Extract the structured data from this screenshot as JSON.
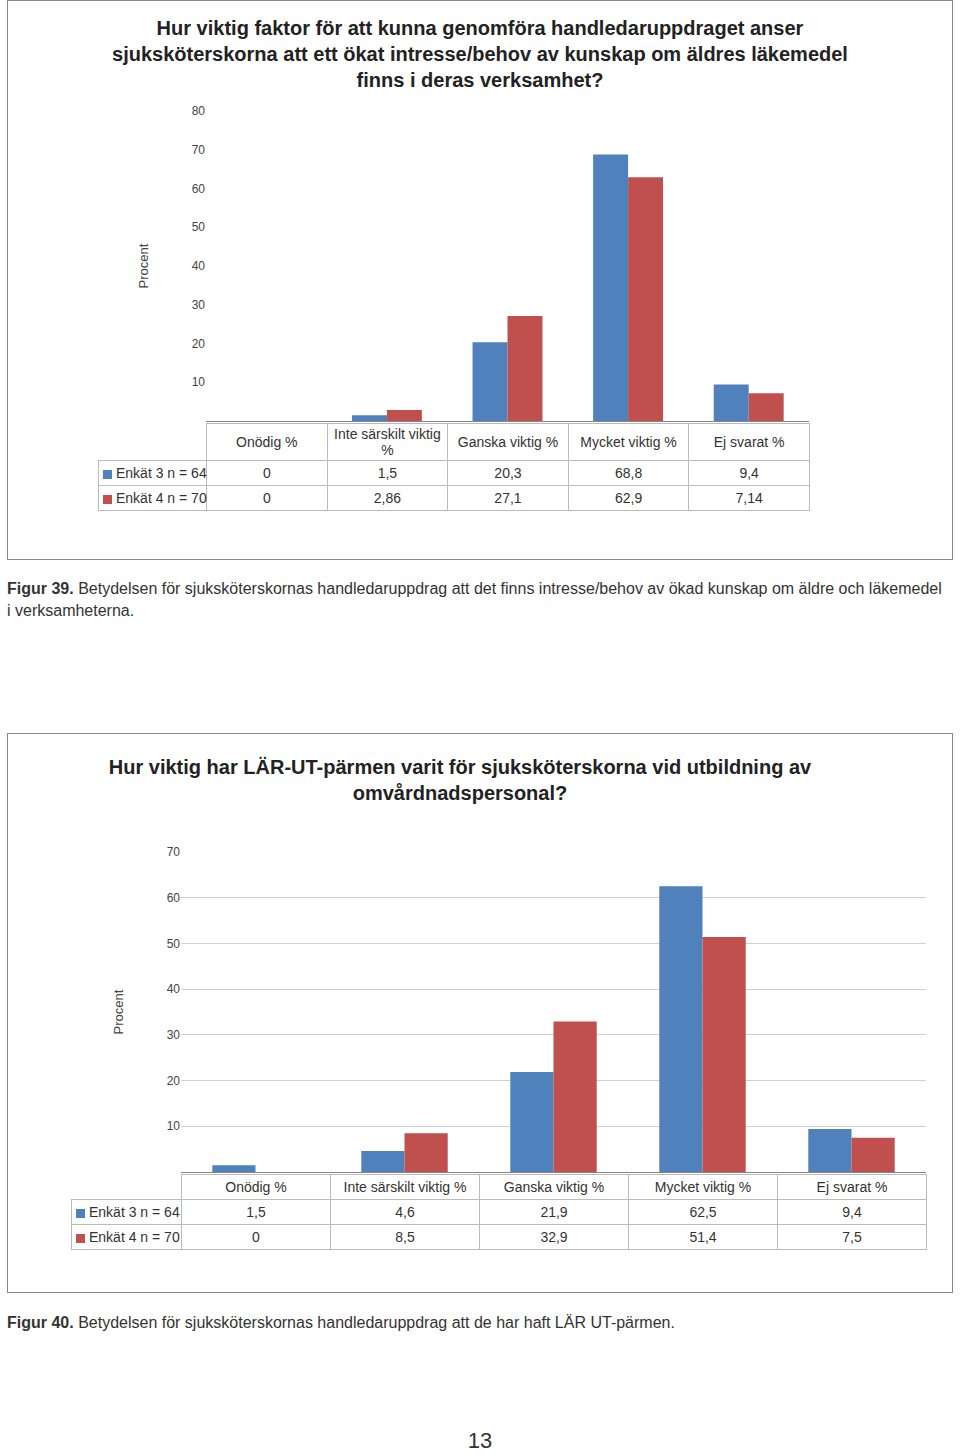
{
  "chart_data": [
    {
      "type": "bar",
      "title": "Hur viktig faktor för att kunna genomföra handledaruppdraget anser sjuksköterskorna att ett ökat intresse/behov av kunskap om äldres läkemedel finns i deras verksamhet?",
      "y_label": "Procent",
      "categories": [
        "Onödig %",
        "Inte särskilt viktig %",
        "Ganska viktig %",
        "Mycket viktig %",
        "Ej svarat %"
      ],
      "series": [
        {
          "name": "Enkät 3 n = 64",
          "color": "#4f81bd",
          "values": [
            0,
            1.5,
            20.3,
            68.8,
            9.4
          ],
          "value_labels": [
            "0",
            "1,5",
            "20,3",
            "68,8",
            "9,4"
          ]
        },
        {
          "name": "Enkät 4 n = 70",
          "color": "#c0504d",
          "values": [
            0,
            2.86,
            27.1,
            62.9,
            7.14
          ],
          "value_labels": [
            "0",
            "2,86",
            "27,1",
            "62,9",
            "7,14"
          ]
        }
      ],
      "ylim": [
        0,
        80
      ],
      "yticks": [
        0,
        10,
        20,
        30,
        40,
        50,
        60,
        70,
        80
      ],
      "grid": false,
      "tick_labels": "y"
    },
    {
      "type": "bar",
      "title": "Hur viktig har LÄR-UT-pärmen varit för sjuksköterskorna vid utbildning av omvårdnadspersonal?",
      "y_label": "Procent",
      "categories": [
        "Onödig %",
        "Inte särskilt viktig %",
        "Ganska viktig %",
        "Mycket viktig %",
        "Ej svarat %"
      ],
      "series": [
        {
          "name": "Enkät 3 n = 64",
          "color": "#4f81bd",
          "values": [
            1.5,
            4.6,
            21.9,
            62.5,
            9.4
          ],
          "value_labels": [
            "1,5",
            "4,6",
            "21,9",
            "62,5",
            "9,4"
          ]
        },
        {
          "name": "Enkät 4 n = 70",
          "color": "#c0504d",
          "values": [
            0,
            8.5,
            32.9,
            51.4,
            7.5
          ],
          "value_labels": [
            "0",
            "8,5",
            "32,9",
            "51,4",
            "7,5"
          ]
        }
      ],
      "ylim": [
        0,
        70
      ],
      "yticks": [
        0,
        10,
        20,
        30,
        40,
        50,
        60,
        70
      ],
      "grid": true,
      "tick_labels": "y"
    }
  ],
  "captions": [
    {
      "label": "Figur 39.",
      "text": "Betydelsen för sjuksköterskornas handledaruppdrag att det finns intresse/behov av ökad kunskap om äldre och läkemedel i verksamheterna."
    },
    {
      "label": "Figur 40.",
      "text": "Betydelsen för sjuksköterskornas handledaruppdrag att de har haft LÄR UT-pärmen."
    }
  ],
  "page_number": "13"
}
